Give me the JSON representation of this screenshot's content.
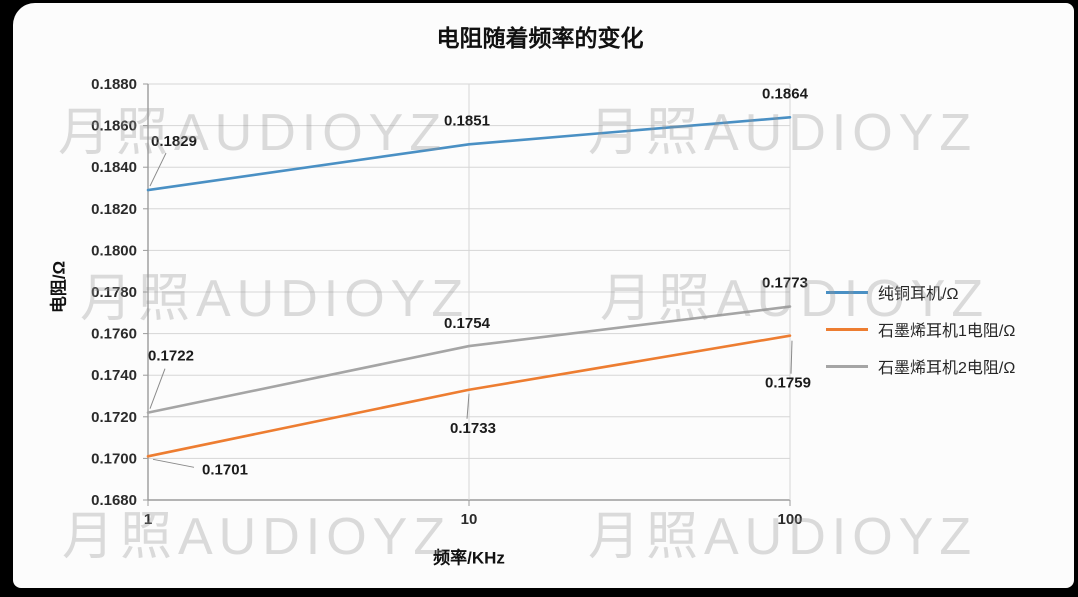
{
  "watermark": {
    "text": "月照AUDIOYZ"
  },
  "chart_data": {
    "type": "line",
    "title": "电阻随着频率的变化",
    "xlabel": "频率/KHz",
    "ylabel": "电阻/Ω",
    "x_scale": "log",
    "x": [
      1,
      10,
      100
    ],
    "x_tick_labels": [
      "1",
      "10",
      "100"
    ],
    "ylim": [
      0.168,
      0.188
    ],
    "y_ticks": [
      "0.1680",
      "0.1700",
      "0.1720",
      "0.1740",
      "0.1760",
      "0.1780",
      "0.1800",
      "0.1820",
      "0.1840",
      "0.1860",
      "0.1880"
    ],
    "grid": true,
    "legend_position": "right",
    "series": [
      {
        "name": "纯铜耳机/Ω",
        "color": "#4a90c4",
        "values": [
          0.1829,
          0.1851,
          0.1864
        ],
        "labels": [
          "0.1829",
          "0.1851",
          "0.1864"
        ]
      },
      {
        "name": "石墨烯耳机1电阻/Ω",
        "color": "#ed7d31",
        "values": [
          0.1701,
          0.1733,
          0.1759
        ],
        "labels": [
          "0.1701",
          "0.1733",
          "0.1759"
        ]
      },
      {
        "name": "石墨烯耳机2电阻/Ω",
        "color": "#a5a5a5",
        "values": [
          0.1722,
          0.1754,
          0.1773
        ],
        "labels": [
          "0.1722",
          "0.1754",
          "0.1773"
        ]
      }
    ]
  }
}
